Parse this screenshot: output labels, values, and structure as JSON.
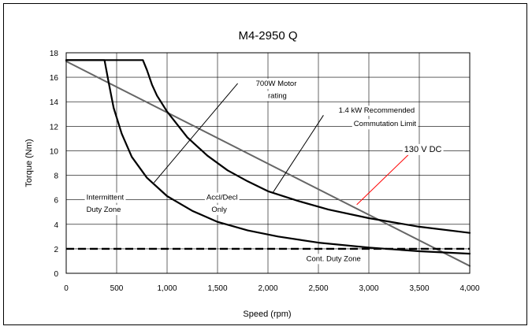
{
  "chart_data": {
    "type": "line",
    "title": "M4-2950 Q",
    "xlabel": "Speed (rpm)",
    "ylabel": "Torque (Nm)",
    "xlim": [
      0,
      4000
    ],
    "ylim": [
      0,
      18
    ],
    "x_ticks": [
      0,
      500,
      1000,
      1500,
      2000,
      2500,
      3000,
      3500,
      4000
    ],
    "x_tick_labels": [
      "0",
      "500",
      "1,000",
      "1,500",
      "2,000",
      "2,500",
      "3,000",
      "3,500",
      "4,000"
    ],
    "y_ticks": [
      0,
      2,
      4,
      6,
      8,
      10,
      12,
      14,
      16,
      18
    ],
    "y_tick_labels": [
      "0",
      "2",
      "4",
      "6",
      "8",
      "10",
      "12",
      "14",
      "16",
      "18"
    ],
    "grid": true,
    "series": [
      {
        "color": "#666666",
        "style": "solid",
        "x": [
          0,
          4000
        ],
        "y": [
          17.3,
          0.6
        ]
      },
      {
        "color": "#000000",
        "style": "solid",
        "x": [
          0,
          760,
          800,
          850,
          900,
          1000,
          1200,
          1400,
          1600,
          1800,
          2000,
          2300,
          2600,
          3000,
          3500,
          4000
        ],
        "y": [
          17.4,
          17.4,
          16.6,
          15.4,
          14.5,
          13.2,
          11.1,
          9.6,
          8.4,
          7.5,
          6.7,
          5.9,
          5.2,
          4.5,
          3.8,
          3.3
        ]
      },
      {
        "color": "#000000",
        "style": "solid",
        "x": [
          0,
          380,
          420,
          470,
          550,
          650,
          800,
          1000,
          1250,
          1500,
          1800,
          2100,
          2500,
          3000,
          3500,
          4000
        ],
        "y": [
          17.4,
          17.4,
          15.6,
          13.5,
          11.4,
          9.5,
          7.8,
          6.3,
          5.1,
          4.2,
          3.5,
          3.0,
          2.5,
          2.1,
          1.8,
          1.6
        ]
      },
      {
        "color": "#000000",
        "style": "dashed",
        "x": [
          0,
          4000
        ],
        "y": [
          2,
          2
        ]
      }
    ],
    "annotations": [
      {
        "text": "700W Motor",
        "x": 1880,
        "y": 15.5
      },
      {
        "text": "rating",
        "x": 2000,
        "y": 14.5
      },
      {
        "text": "1.4 kW Recommended",
        "x": 2700,
        "y": 13.3
      },
      {
        "text": "Commutation Limit",
        "x": 2850,
        "y": 12.2
      },
      {
        "text": "130 V DC",
        "x": 3350,
        "y": 10.1
      },
      {
        "text": "Intermittent",
        "x": 200,
        "y": 6.2
      },
      {
        "text": "Duty Zone",
        "x": 200,
        "y": 5.2
      },
      {
        "text": "Accl/Decl",
        "x": 1390,
        "y": 6.2
      },
      {
        "text": "Only",
        "x": 1440,
        "y": 5.2
      },
      {
        "text": "Cont. Duty Zone",
        "x": 2380,
        "y": 1.2
      }
    ],
    "leaders": [
      {
        "color": "#000000",
        "x": [
          1700,
          870
        ],
        "y": [
          15.5,
          7.4
        ]
      },
      {
        "color": "#000000",
        "x": [
          2550,
          2050
        ],
        "y": [
          12.9,
          6.6
        ]
      },
      {
        "color": "#ff0000",
        "x": [
          3420,
          2880
        ],
        "y": [
          9.9,
          5.6
        ]
      }
    ]
  }
}
